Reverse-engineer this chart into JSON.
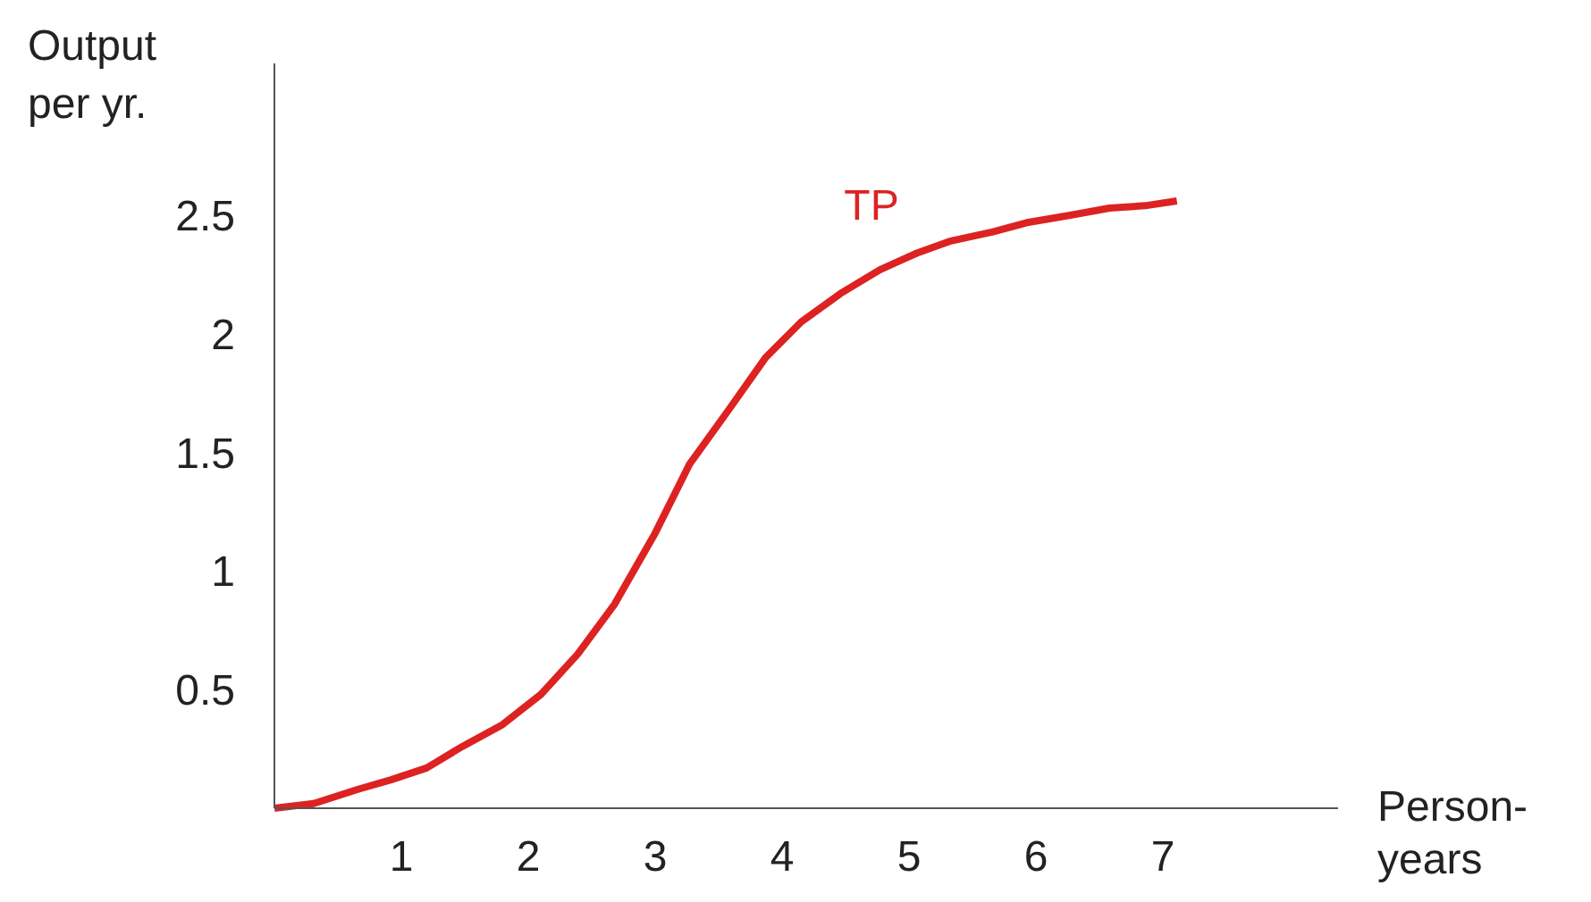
{
  "chart_data": {
    "type": "line",
    "xlabel": "Person-\nyears",
    "ylabel": "Output\nper yr.",
    "x": [
      0,
      0.31,
      0.66,
      0.92,
      1.2,
      1.48,
      1.79,
      2.1,
      2.39,
      2.68,
      3.0,
      3.27,
      3.58,
      3.87,
      4.15,
      4.46,
      4.77,
      5.06,
      5.32,
      5.66,
      5.94,
      6.27,
      6.58,
      6.86,
      7.11
    ],
    "series": [
      {
        "name": "TP",
        "color": "#dd2222",
        "values": [
          0,
          0.02,
          0.08,
          0.12,
          0.17,
          0.26,
          0.35,
          0.48,
          0.65,
          0.86,
          1.16,
          1.45,
          1.68,
          1.9,
          2.05,
          2.17,
          2.27,
          2.34,
          2.39,
          2.43,
          2.47,
          2.5,
          2.53,
          2.54,
          2.56
        ]
      }
    ],
    "xlim": [
      0,
      8.38
    ],
    "ylim": [
      0,
      3.14
    ],
    "xticks": [
      1,
      2,
      3,
      4,
      5,
      6,
      7
    ],
    "yticks": [
      0.5,
      1,
      1.5,
      2,
      2.5
    ],
    "grid": false,
    "legend": false,
    "marker": "none",
    "line_style": "solid"
  }
}
